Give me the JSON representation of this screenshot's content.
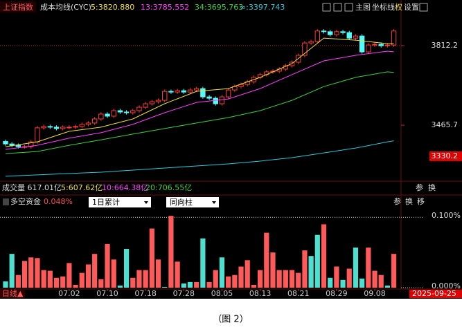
{
  "chart_data": [
    {
      "type": "candlestick",
      "title": "上证指数",
      "indicator": "成本均线(CYC)",
      "toolbar": [
        "主图",
        "坐标线",
        "权",
        "设置"
      ],
      "ylim": [
        3221.7,
        3944.8
      ],
      "yticks": [
        3812.2,
        3465.7
      ],
      "ref_line": 3812.2,
      "price_marker": 3330.2,
      "up_color": "#ff3c3c",
      "down_color": "#54fcfc",
      "open": [
        3395,
        3384,
        3378,
        3372,
        3372,
        3393,
        3454,
        3460,
        3457,
        3451,
        3457,
        3457,
        3460,
        3469,
        3475,
        3493,
        3514,
        3505,
        3529,
        3523,
        3520,
        3529,
        3544,
        3559,
        3568,
        3574,
        3613,
        3610,
        3616,
        3610,
        3619,
        3625,
        3589,
        3583,
        3559,
        3589,
        3619,
        3634,
        3643,
        3655,
        3674,
        3686,
        3698,
        3701,
        3710,
        3725,
        3740,
        3770,
        3824,
        3830,
        3876,
        3873,
        3860,
        3873,
        3869,
        3845,
        3854,
        3785,
        3815,
        3818,
        3812,
        3815
      ],
      "high": [
        3403,
        3392,
        3386,
        3380,
        3401,
        3462,
        3468,
        3468,
        3465,
        3465,
        3465,
        3468,
        3477,
        3483,
        3501,
        3522,
        3522,
        3537,
        3537,
        3531,
        3537,
        3552,
        3567,
        3576,
        3582,
        3621,
        3621,
        3624,
        3624,
        3627,
        3633,
        3633,
        3597,
        3591,
        3597,
        3627,
        3642,
        3651,
        3663,
        3682,
        3694,
        3706,
        3709,
        3718,
        3733,
        3748,
        3778,
        3832,
        3838,
        3884,
        3884,
        3881,
        3881,
        3881,
        3877,
        3862,
        3862,
        3823,
        3826,
        3826,
        3823,
        3884
      ],
      "low": [
        3376,
        3370,
        3364,
        3364,
        3364,
        3385,
        3446,
        3449,
        3443,
        3443,
        3449,
        3449,
        3452,
        3461,
        3467,
        3485,
        3497,
        3497,
        3515,
        3512,
        3512,
        3521,
        3536,
        3551,
        3560,
        3566,
        3602,
        3602,
        3602,
        3602,
        3611,
        3581,
        3575,
        3551,
        3551,
        3581,
        3611,
        3626,
        3635,
        3647,
        3666,
        3678,
        3690,
        3693,
        3702,
        3717,
        3732,
        3762,
        3816,
        3822,
        3865,
        3852,
        3852,
        3861,
        3837,
        3837,
        3777,
        3777,
        3807,
        3804,
        3804,
        3807
      ],
      "close": [
        3384,
        3378,
        3372,
        3372,
        3393,
        3454,
        3460,
        3457,
        3451,
        3457,
        3457,
        3460,
        3469,
        3475,
        3493,
        3514,
        3505,
        3529,
        3523,
        3520,
        3529,
        3544,
        3559,
        3568,
        3574,
        3613,
        3610,
        3616,
        3610,
        3619,
        3625,
        3589,
        3583,
        3559,
        3589,
        3619,
        3634,
        3643,
        3655,
        3674,
        3686,
        3698,
        3701,
        3710,
        3725,
        3740,
        3770,
        3824,
        3830,
        3876,
        3873,
        3860,
        3873,
        3869,
        3845,
        3854,
        3785,
        3815,
        3818,
        3812,
        3815,
        3876
      ],
      "series": [
        {
          "name": "5:3820.880",
          "color": "#f0e040",
          "x": [
            0,
            5,
            10,
            15,
            20,
            25,
            30,
            35,
            40,
            45,
            50,
            55,
            60,
            61
          ],
          "values": [
            3372,
            3393,
            3439,
            3457,
            3493,
            3559,
            3613,
            3625,
            3674,
            3734,
            3845,
            3836,
            3821,
            3820.88
          ]
        },
        {
          "name": "13:3785.552",
          "color": "#ff40ff",
          "x": [
            0,
            5,
            10,
            15,
            20,
            25,
            30,
            35,
            40,
            45,
            50,
            55,
            60,
            61
          ],
          "values": [
            3360,
            3378,
            3409,
            3433,
            3469,
            3520,
            3565,
            3580,
            3625,
            3686,
            3746,
            3770,
            3788,
            3785.552
          ]
        },
        {
          "name": "34:3695.763",
          "color": "#40d040",
          "x": [
            0,
            5,
            10,
            15,
            20,
            25,
            30,
            35,
            40,
            45,
            50,
            55,
            60,
            61
          ],
          "values": [
            3342,
            3351,
            3378,
            3402,
            3427,
            3451,
            3475,
            3499,
            3529,
            3574,
            3634,
            3674,
            3698,
            3695.763
          ]
        },
        {
          "name": "∞:3397.743",
          "color": "#30c8d8",
          "x": [
            0,
            5,
            10,
            15,
            20,
            25,
            30,
            35,
            40,
            45,
            50,
            55,
            60,
            61
          ],
          "values": [
            3243,
            3249,
            3255,
            3261,
            3270,
            3279,
            3288,
            3297,
            3309,
            3324,
            3345,
            3366,
            3393,
            3397.743
          ]
        }
      ]
    },
    {
      "type": "bar",
      "title": "多空资金",
      "current_label": "0.048%",
      "dropdowns": [
        "1日累计",
        "同向柱"
      ],
      "tools": [
        "参",
        "换",
        "移"
      ],
      "ylim": [
        0,
        0.112
      ],
      "yticks": [
        {
          "value": 0.1,
          "label": "0.100%"
        },
        {
          "value": 0,
          "label": "0.000%"
        }
      ],
      "period_label": "日线▲",
      "date_label": "2025-09-25",
      "categories": [
        null,
        null,
        null,
        null,
        null,
        null,
        null,
        null,
        null,
        null,
        "07.02",
        null,
        null,
        null,
        null,
        null,
        "07.10",
        null,
        null,
        null,
        null,
        null,
        "07.18",
        null,
        null,
        null,
        null,
        null,
        "07.28",
        null,
        null,
        null,
        null,
        null,
        "08.05",
        null,
        null,
        null,
        null,
        null,
        "08.13",
        null,
        null,
        null,
        null,
        null,
        "08.21",
        null,
        null,
        null,
        null,
        null,
        "08.29",
        null,
        null,
        null,
        null,
        null,
        "09.08",
        null,
        null,
        null
      ],
      "values": [
        0.009,
        0.048,
        0.018,
        0.038,
        0.043,
        0.042,
        0.025,
        0.024,
        0.014,
        0.016,
        0.035,
        0.004,
        0.021,
        0.033,
        0.048,
        0.012,
        0.062,
        0.04,
        0.003,
        0.055,
        0.014,
        0.025,
        0.025,
        0.084,
        0.04,
        0.001,
        0.102,
        0.037,
        0.006,
        0.008,
        0.008,
        0.07,
        0.008,
        0.025,
        0.043,
        0.016,
        0.018,
        0.03,
        0.039,
        0.004,
        0.025,
        0.078,
        0.05,
        0.025,
        0.025,
        0.025,
        0.021,
        0.053,
        0.045,
        0.075,
        0.09,
        0.014,
        0.03,
        0.011,
        0.027,
        0.057,
        0.013,
        0.057,
        0.024,
        0.018,
        0.003,
        0.048
      ],
      "bar_colors": [
        "#4de0d0",
        "#4de0d0",
        "#ff5a5a",
        "#ff5a5a",
        "#ff5a5a",
        "#ff5a5a",
        "#ff5a5a",
        "#ff5a5a",
        "#ff5a5a",
        "#ff5a5a",
        "#ff5a5a",
        "#ff5a5a",
        "#ff5a5a",
        "#ff5a5a",
        "#ff5a5a",
        "#ff5a5a",
        "#ff5a5a",
        "#ff5a5a",
        "#4de0d0",
        "#4de0d0",
        "#ff5a5a",
        "#ff5a5a",
        "#ff5a5a",
        "#ff5a5a",
        "#ff5a5a",
        "#4de0d0",
        "#ff5a5a",
        "#ff5a5a",
        "#4de0d0",
        "#4de0d0",
        "#ff5a5a",
        "#4de0d0",
        "#ff5a5a",
        "#ff5a5a",
        "#4de0d0",
        "#ff5a5a",
        "#ff5a5a",
        "#ff5a5a",
        "#ff5a5a",
        "#ff5a5a",
        "#ff5a5a",
        "#ff5a5a",
        "#ff5a5a",
        "#ff5a5a",
        "#ff5a5a",
        "#ff5a5a",
        "#ff5a5a",
        "#ff5a5a",
        "#4de0d0",
        "#4de0d0",
        "#ff5a5a",
        "#4de0d0",
        "#ff5a5a",
        "#4de0d0",
        "#ff5a5a",
        "#4de0d0",
        "#4de0d0",
        "#ff5a5a",
        "#ff5a5a",
        "#ff5a5a",
        "#4de0d0",
        "#ff5a5a"
      ]
    }
  ],
  "info_bar": [
    {
      "text": "成交量 617.01亿",
      "color": "#dddddd"
    },
    {
      "text": "5:607.62亿",
      "color": "#f0e040"
    },
    {
      "text": "10:664.38亿",
      "color": "#ff40ff"
    },
    {
      "text": "20:706.55亿",
      "color": "#40d040"
    }
  ],
  "info_tools": [
    "参",
    "换"
  ],
  "caption": "（图 2）"
}
